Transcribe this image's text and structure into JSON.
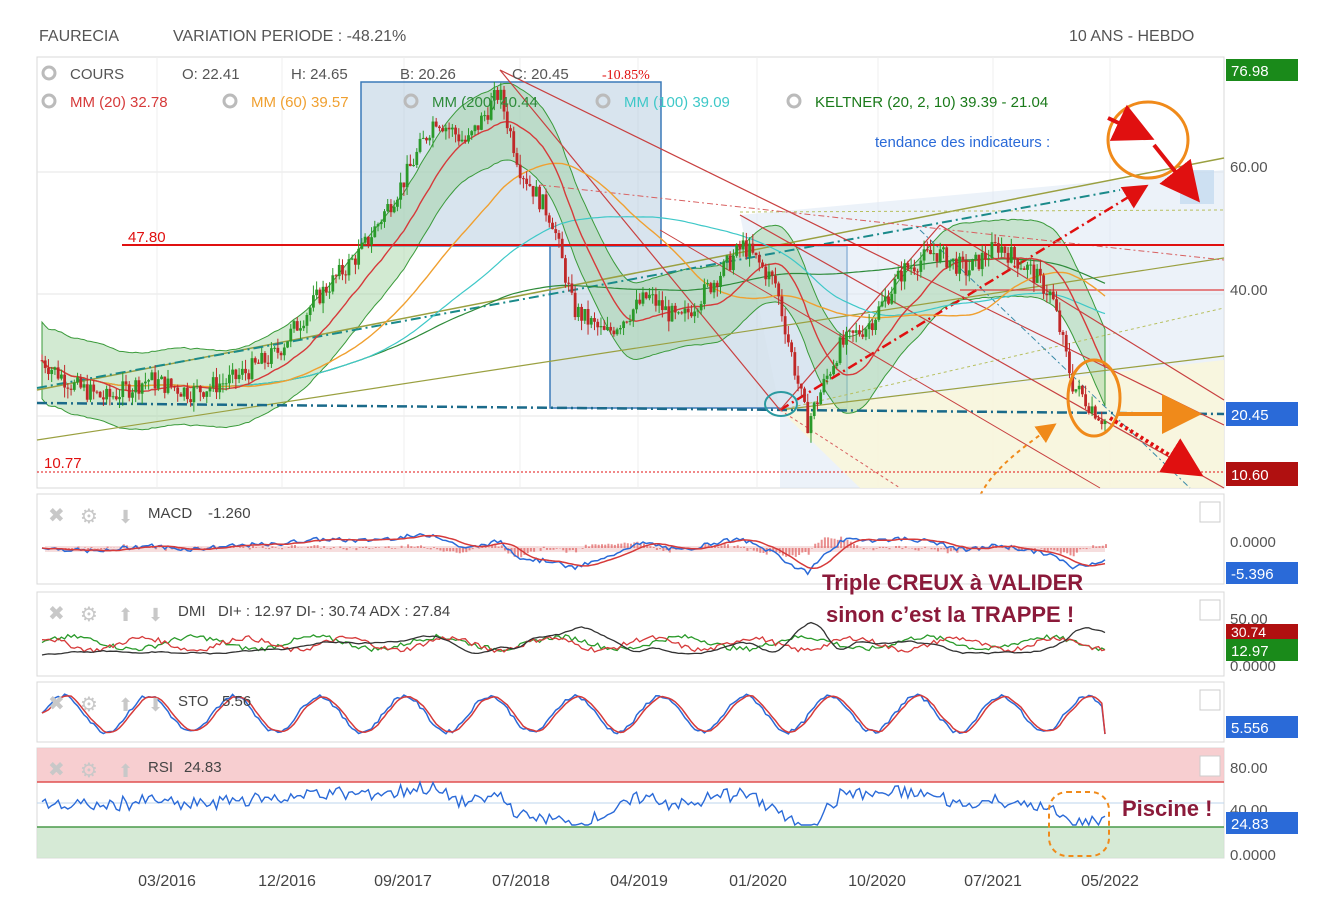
{
  "header": {
    "instrument": "FAURECIA",
    "variation": "VARIATION PERIODE : -48.21%",
    "period": "10 ANS - HEBDO"
  },
  "legend": {
    "cours": "COURS",
    "open": "O: 22.41",
    "high": "H: 24.65",
    "low": "B: 20.26",
    "close": "C: 20.45",
    "change": "-10.85%",
    "mm20": "MM (20)  32.78",
    "mm60": "MM (60)  39.57",
    "mm200": "MM (200)  40.44",
    "mm100": "MM (100)  39.09",
    "keltner": "KELTNER (20, 2, 10)  39.39 - 21.04",
    "tendance": "tendance des indicateurs :"
  },
  "price_levels": {
    "resistance_label": "47.80",
    "support_label": "10.77"
  },
  "price_axis": [
    "60.00",
    "40.00"
  ],
  "price_badges": {
    "high": "76.98",
    "last": "20.45",
    "low": "10.60"
  },
  "panels": {
    "macd": {
      "label": "MACD",
      "value": "-1.260",
      "axis": [
        "0.0000"
      ],
      "badge": "-5.396"
    },
    "dmi": {
      "label": "DMI",
      "value": "DI+ : 12.97 DI- : 30.74 ADX : 27.84",
      "axis": [
        "50.00",
        "0.0000"
      ],
      "badge_di_minus": "30.74",
      "badge_di_plus": "12.97"
    },
    "sto": {
      "label": "STO",
      "value": "5.56",
      "badge": "5.556"
    },
    "rsi": {
      "label": "RSI",
      "value": "24.83",
      "axis": [
        "80.00",
        "40.00",
        "0.0000"
      ],
      "badge": "24.83"
    }
  },
  "annotations": {
    "triple_1": "Triple CREUX à VALIDER",
    "triple_2": "sinon c’est la TRAPPE !",
    "piscine": "Piscine !"
  },
  "colors": {
    "ma20": "#d63a3a",
    "ma60": "#f0a030",
    "ma200": "#2e8b3a",
    "ma100": "#3ec8c8",
    "keltner": "#1a7a1a",
    "up": "#2a9a2a",
    "down": "#c02828",
    "resistance": "#e01010",
    "badge_green": "#1a8a1a",
    "badge_blue": "#2a6ad8",
    "badge_red": "#b01010"
  },
  "chart_data": {
    "type": "candlestick",
    "x_ticks": [
      "03/2016",
      "12/2016",
      "09/2017",
      "07/2018",
      "04/2019",
      "01/2020",
      "10/2020",
      "07/2021",
      "05/2022"
    ],
    "ylim": [
      10,
      77
    ],
    "close_path": [
      {
        "t": 0.0,
        "v": 30
      },
      {
        "t": 0.03,
        "v": 26
      },
      {
        "t": 0.06,
        "v": 24
      },
      {
        "t": 0.1,
        "v": 27
      },
      {
        "t": 0.14,
        "v": 25
      },
      {
        "t": 0.18,
        "v": 27
      },
      {
        "t": 0.22,
        "v": 31
      },
      {
        "t": 0.26,
        "v": 40
      },
      {
        "t": 0.3,
        "v": 47
      },
      {
        "t": 0.34,
        "v": 58
      },
      {
        "t": 0.37,
        "v": 68
      },
      {
        "t": 0.4,
        "v": 64
      },
      {
        "t": 0.43,
        "v": 72
      },
      {
        "t": 0.45,
        "v": 60
      },
      {
        "t": 0.48,
        "v": 52
      },
      {
        "t": 0.5,
        "v": 38
      },
      {
        "t": 0.53,
        "v": 34
      },
      {
        "t": 0.57,
        "v": 40
      },
      {
        "t": 0.6,
        "v": 36
      },
      {
        "t": 0.63,
        "v": 42
      },
      {
        "t": 0.66,
        "v": 48
      },
      {
        "t": 0.69,
        "v": 42
      },
      {
        "t": 0.72,
        "v": 20
      },
      {
        "t": 0.75,
        "v": 32
      },
      {
        "t": 0.78,
        "v": 36
      },
      {
        "t": 0.81,
        "v": 44
      },
      {
        "t": 0.84,
        "v": 47
      },
      {
        "t": 0.87,
        "v": 44
      },
      {
        "t": 0.9,
        "v": 48
      },
      {
        "t": 0.93,
        "v": 44
      },
      {
        "t": 0.95,
        "v": 40
      },
      {
        "t": 0.97,
        "v": 26
      },
      {
        "t": 1.0,
        "v": 20.45
      }
    ]
  }
}
